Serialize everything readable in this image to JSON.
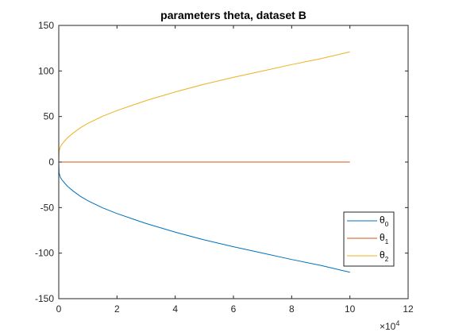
{
  "chart_data": {
    "type": "line",
    "title": "parameters theta, dataset B",
    "xlabel": "",
    "ylabel": "",
    "xlim": [
      0,
      120000
    ],
    "ylim": [
      -150,
      150
    ],
    "x_ticks": [
      0,
      20000,
      40000,
      60000,
      80000,
      100000,
      120000
    ],
    "x_tick_labels": [
      "0",
      "2",
      "4",
      "6",
      "8",
      "10",
      "12"
    ],
    "x_exponent_label": "×10",
    "x_exponent_power": "4",
    "y_ticks": [
      -150,
      -100,
      -50,
      0,
      50,
      100,
      150
    ],
    "y_tick_labels": [
      "-150",
      "-100",
      "-50",
      "0",
      "50",
      "100",
      "150"
    ],
    "grid": false,
    "legend_position": "bottom-right",
    "series": [
      {
        "name": "θ",
        "subscript": "0",
        "color": "#0072bd",
        "x": [
          0,
          100,
          500,
          1000,
          2000,
          3000,
          5000,
          7500,
          10000,
          15000,
          20000,
          25000,
          30000,
          40000,
          50000,
          60000,
          70000,
          80000,
          90000,
          100000
        ],
        "values": [
          0,
          -11.5,
          -16.5,
          -19.2,
          -23,
          -26.6,
          -32,
          -37.8,
          -42.5,
          -50.2,
          -56.5,
          -62,
          -67.5,
          -77,
          -85.5,
          -93,
          -100,
          -107,
          -113.5,
          -121
        ]
      },
      {
        "name": "θ",
        "subscript": "1",
        "color": "#d95319",
        "x": [
          0,
          100,
          1000,
          10000,
          50000,
          100000
        ],
        "values": [
          0,
          0,
          0,
          0,
          0,
          0
        ]
      },
      {
        "name": "θ",
        "subscript": "2",
        "color": "#edb120",
        "x": [
          0,
          100,
          500,
          1000,
          2000,
          3000,
          5000,
          7500,
          10000,
          15000,
          20000,
          25000,
          30000,
          40000,
          50000,
          60000,
          70000,
          80000,
          90000,
          100000
        ],
        "values": [
          0,
          11.5,
          16.5,
          19.2,
          23,
          26.6,
          32,
          37.8,
          42.5,
          50.2,
          56.5,
          62,
          67.5,
          77,
          85.5,
          93,
          100,
          107,
          113.5,
          121
        ]
      }
    ]
  }
}
